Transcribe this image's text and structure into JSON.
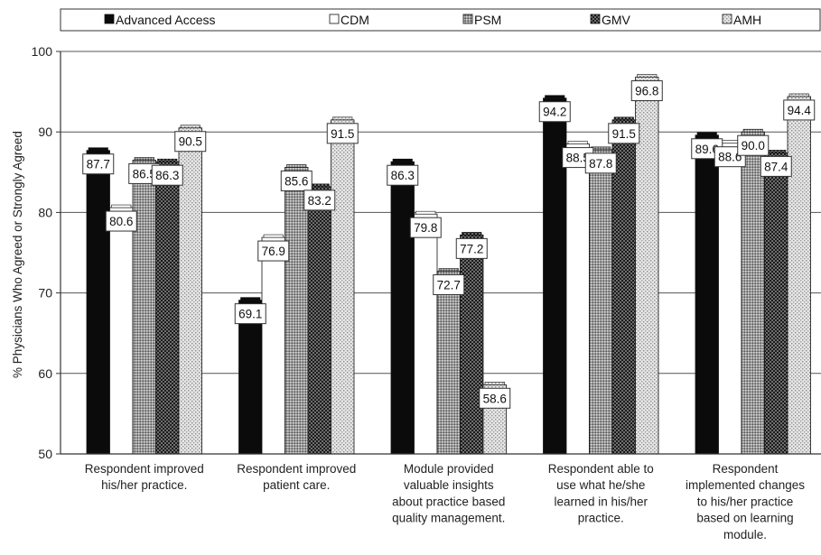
{
  "chart_data": {
    "type": "bar",
    "ylabel": "% Physicians Who Agreed or Strongly Agreed",
    "ylim": [
      50,
      100
    ],
    "yticks": [
      50,
      60,
      70,
      80,
      90,
      100
    ],
    "grid": true,
    "legend_position": "top",
    "categories": [
      [
        "Respondent improved",
        "his/her practice."
      ],
      [
        "Respondent improved",
        "patient care."
      ],
      [
        "Module provided",
        "valuable insights",
        "about practice based",
        "quality management."
      ],
      [
        "Respondent able to",
        "use what he/she",
        "learned in his/her",
        "practice."
      ],
      [
        "Respondent",
        "implemented changes",
        "to his/her practice",
        "based on learning",
        "module."
      ]
    ],
    "series": [
      {
        "name": "Advanced Access",
        "values": [
          87.7,
          69.1,
          86.3,
          94.2,
          89.6
        ],
        "pattern": "solid-black"
      },
      {
        "name": "CDM",
        "values": [
          80.6,
          76.9,
          79.8,
          88.5,
          88.6
        ],
        "pattern": "white"
      },
      {
        "name": "PSM",
        "values": [
          86.5,
          85.6,
          72.7,
          87.8,
          90.0
        ],
        "pattern": "fine-grey"
      },
      {
        "name": "GMV",
        "values": [
          86.3,
          83.2,
          77.2,
          91.5,
          87.4
        ],
        "pattern": "dark-check"
      },
      {
        "name": "AMH",
        "values": [
          90.5,
          91.5,
          58.6,
          96.8,
          94.4
        ],
        "pattern": "light-dots"
      }
    ],
    "data_labels": [
      [
        "87.7",
        "69.1",
        "86.3",
        "94.2",
        "89.6"
      ],
      [
        "80.6",
        "76.9",
        "79.8",
        "88.5",
        "88.6"
      ],
      [
        "86.5",
        "85.6",
        "72.7",
        "87.8",
        "90.0"
      ],
      [
        "86.3",
        "83.2",
        "77.2",
        "91.5",
        "87.4"
      ],
      [
        "90.5",
        "91.5",
        "58.6",
        "96.8",
        "94.4"
      ]
    ]
  }
}
